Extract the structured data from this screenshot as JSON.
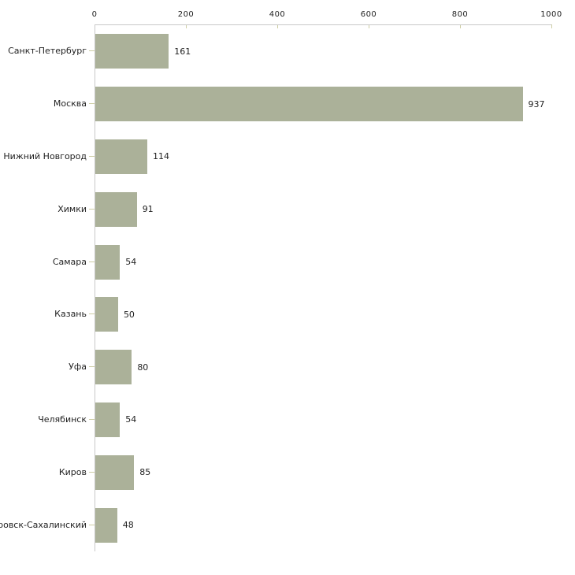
{
  "chart_data": {
    "type": "bar",
    "orientation": "horizontal",
    "title": "",
    "categories": [
      "Санкт-Петербург",
      "Москва",
      "Нижний Новгород",
      "Химки",
      "Самара",
      "Казань",
      "Уфа",
      "Челябинск",
      "Киров",
      "Александровск-Сахалинский"
    ],
    "values": [
      161,
      937,
      114,
      91,
      54,
      50,
      80,
      54,
      85,
      48
    ],
    "x_ticks": [
      0,
      200,
      400,
      600,
      800,
      1000
    ],
    "xlim": [
      0,
      1000
    ],
    "xlabel": "",
    "ylabel": "",
    "grid": false,
    "legend": "none",
    "value_labels_shown": true,
    "bar_color": "#abb199",
    "axis_line_color": "#c9c9c9",
    "tick_mark_color": "#cdcda4",
    "text_color": "#1f1f1f"
  }
}
